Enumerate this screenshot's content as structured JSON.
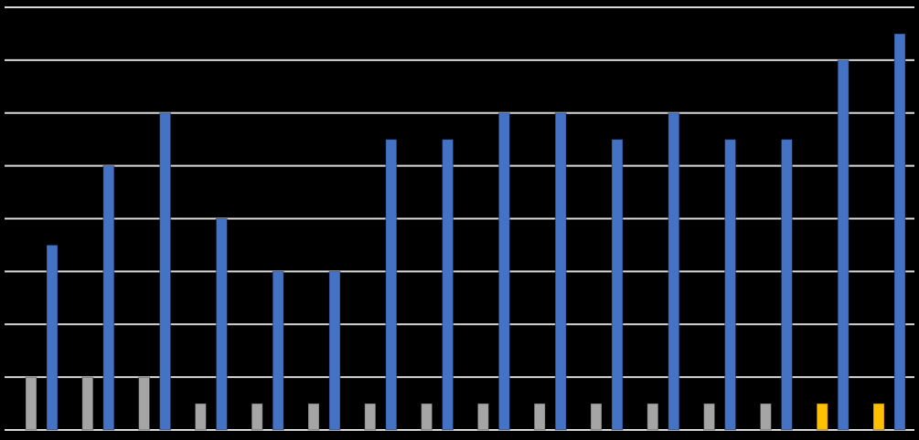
{
  "chart_data": {
    "type": "bar",
    "categories": [
      null,
      null,
      null,
      null,
      null,
      null,
      null,
      null,
      null,
      null,
      null,
      null,
      null,
      null,
      null,
      null
    ],
    "series": [
      {
        "color": "#a5a5a5",
        "values": [
          1,
          1,
          1,
          0.5,
          0.5,
          0.5,
          0.5,
          0.5,
          0.5,
          0.5,
          0.5,
          0.5,
          0.5,
          0.5,
          null,
          null
        ]
      },
      {
        "color": "#ffc000",
        "values": [
          null,
          null,
          null,
          null,
          null,
          null,
          null,
          null,
          null,
          null,
          null,
          null,
          null,
          null,
          0.5,
          0.5
        ]
      },
      {
        "color": "#4472c4",
        "values": [
          3.5,
          5,
          6,
          4,
          3,
          3,
          5.5,
          5.5,
          6,
          6,
          5.5,
          6,
          5.5,
          5.5,
          7,
          7.5
        ]
      }
    ],
    "ylim": [
      0,
      8
    ],
    "yticks": [
      0,
      1,
      2,
      3,
      4,
      5,
      6,
      7,
      8
    ],
    "grid": true
  }
}
